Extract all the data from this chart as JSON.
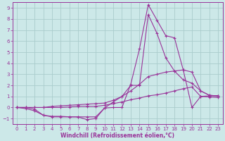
{
  "xlabel": "Windchill (Refroidissement éolien,°C)",
  "bg_color": "#cce8e8",
  "grid_color": "#aacccc",
  "line_color": "#993399",
  "xlim": [
    -0.5,
    23.5
  ],
  "ylim": [
    -1.5,
    9.5
  ],
  "yticks": [
    -1,
    0,
    1,
    2,
    3,
    4,
    5,
    6,
    7,
    8,
    9
  ],
  "xticks": [
    0,
    1,
    2,
    3,
    4,
    5,
    6,
    7,
    8,
    9,
    10,
    11,
    12,
    13,
    14,
    15,
    16,
    17,
    18,
    19,
    20,
    21,
    22,
    23
  ],
  "series": [
    [
      0,
      -0.1,
      -0.3,
      -0.7,
      -0.85,
      -0.85,
      -0.85,
      -0.85,
      -1.1,
      -1.0,
      -0.05,
      0.0,
      0.0,
      2.1,
      5.3,
      9.3,
      7.9,
      6.5,
      6.3,
      3.4,
      0.0,
      1.0,
      1.05,
      1.05
    ],
    [
      0,
      0,
      -0.15,
      -0.7,
      -0.8,
      -0.8,
      -0.85,
      -0.85,
      -0.85,
      -0.85,
      -0.05,
      0.5,
      1.0,
      2.0,
      2.0,
      8.4,
      6.7,
      4.5,
      3.3,
      2.5,
      2.2,
      1.5,
      1.1,
      1.05
    ],
    [
      0,
      0,
      0,
      0,
      0.1,
      0.15,
      0.2,
      0.25,
      0.3,
      0.35,
      0.4,
      0.65,
      1.0,
      1.5,
      2.1,
      2.8,
      3.0,
      3.2,
      3.3,
      3.4,
      3.2,
      1.5,
      1.1,
      1.05
    ],
    [
      0,
      0,
      0,
      0,
      0.0,
      0.0,
      0.05,
      0.1,
      0.1,
      0.1,
      0.2,
      0.35,
      0.5,
      0.7,
      0.85,
      1.05,
      1.15,
      1.3,
      1.5,
      1.7,
      1.85,
      1.0,
      0.95,
      0.9
    ]
  ]
}
